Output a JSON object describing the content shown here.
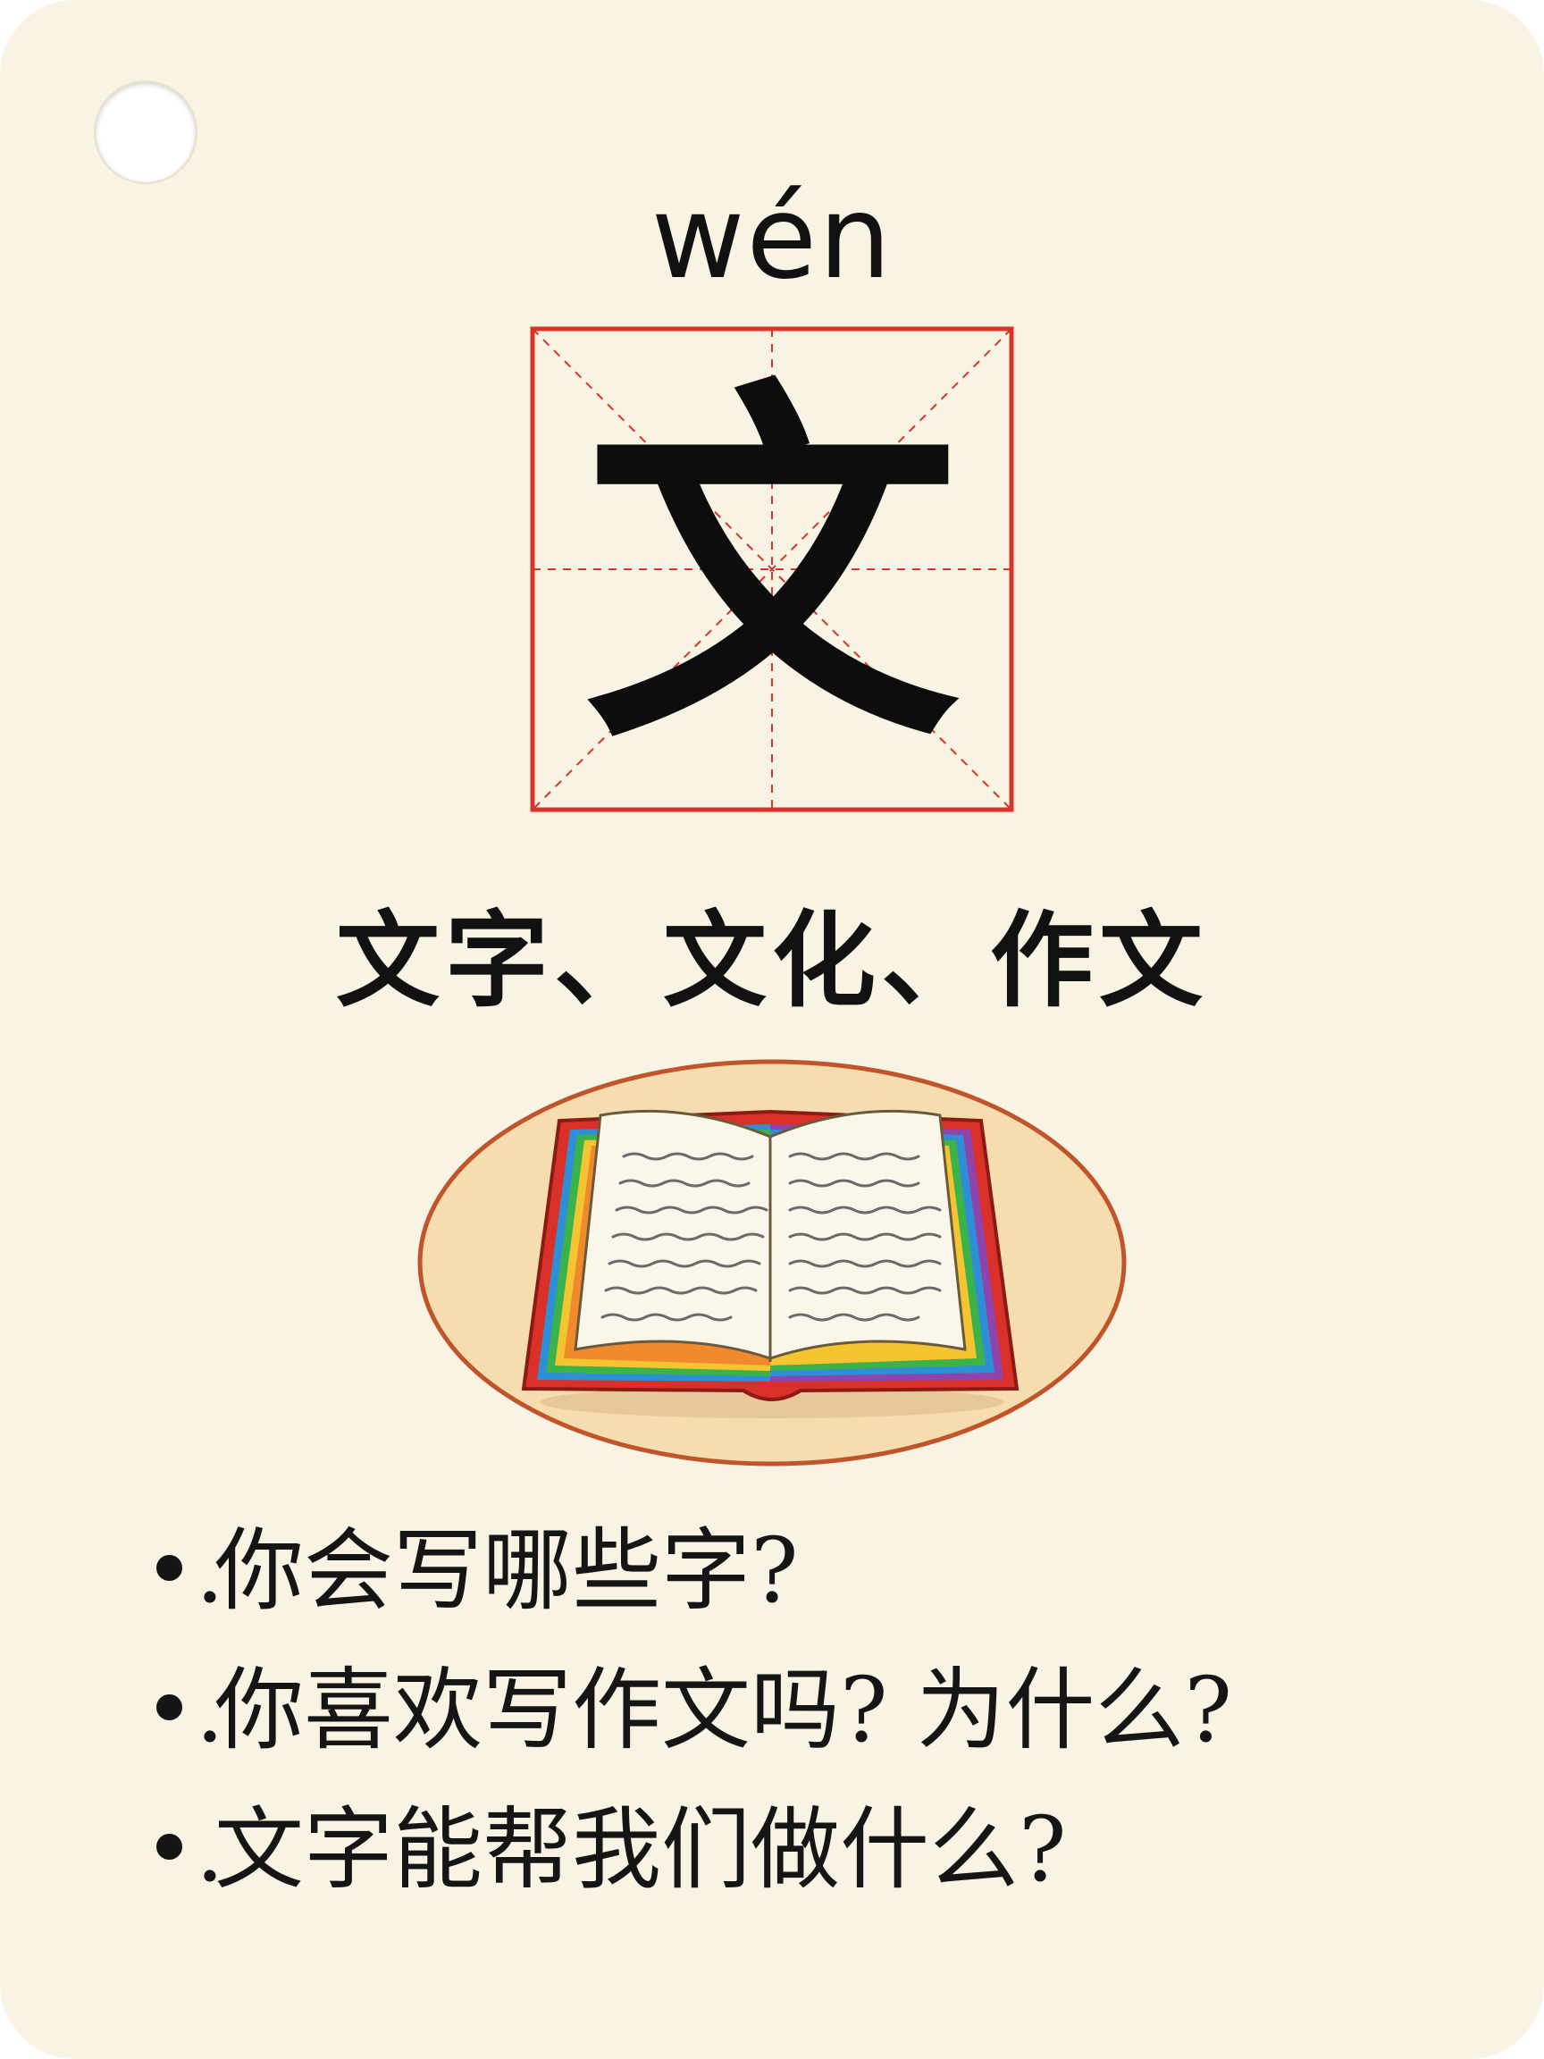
{
  "card": {
    "pinyin": "wén",
    "character": "文",
    "words": "文字、文化、作文",
    "illustration_icon": "open-book-icon",
    "bullet": "•.",
    "questions": [
      "你会写哪些字?",
      "你喜欢写作文吗? 为什么?",
      "文字能帮我们做什么?"
    ]
  },
  "colors": {
    "background": "#f8f3e2",
    "grid_red": "#d8342a",
    "ink": "#111111",
    "oval_fill": "#f6ddb0",
    "oval_stroke": "#c0542a",
    "book_cover": "#d9302a"
  }
}
